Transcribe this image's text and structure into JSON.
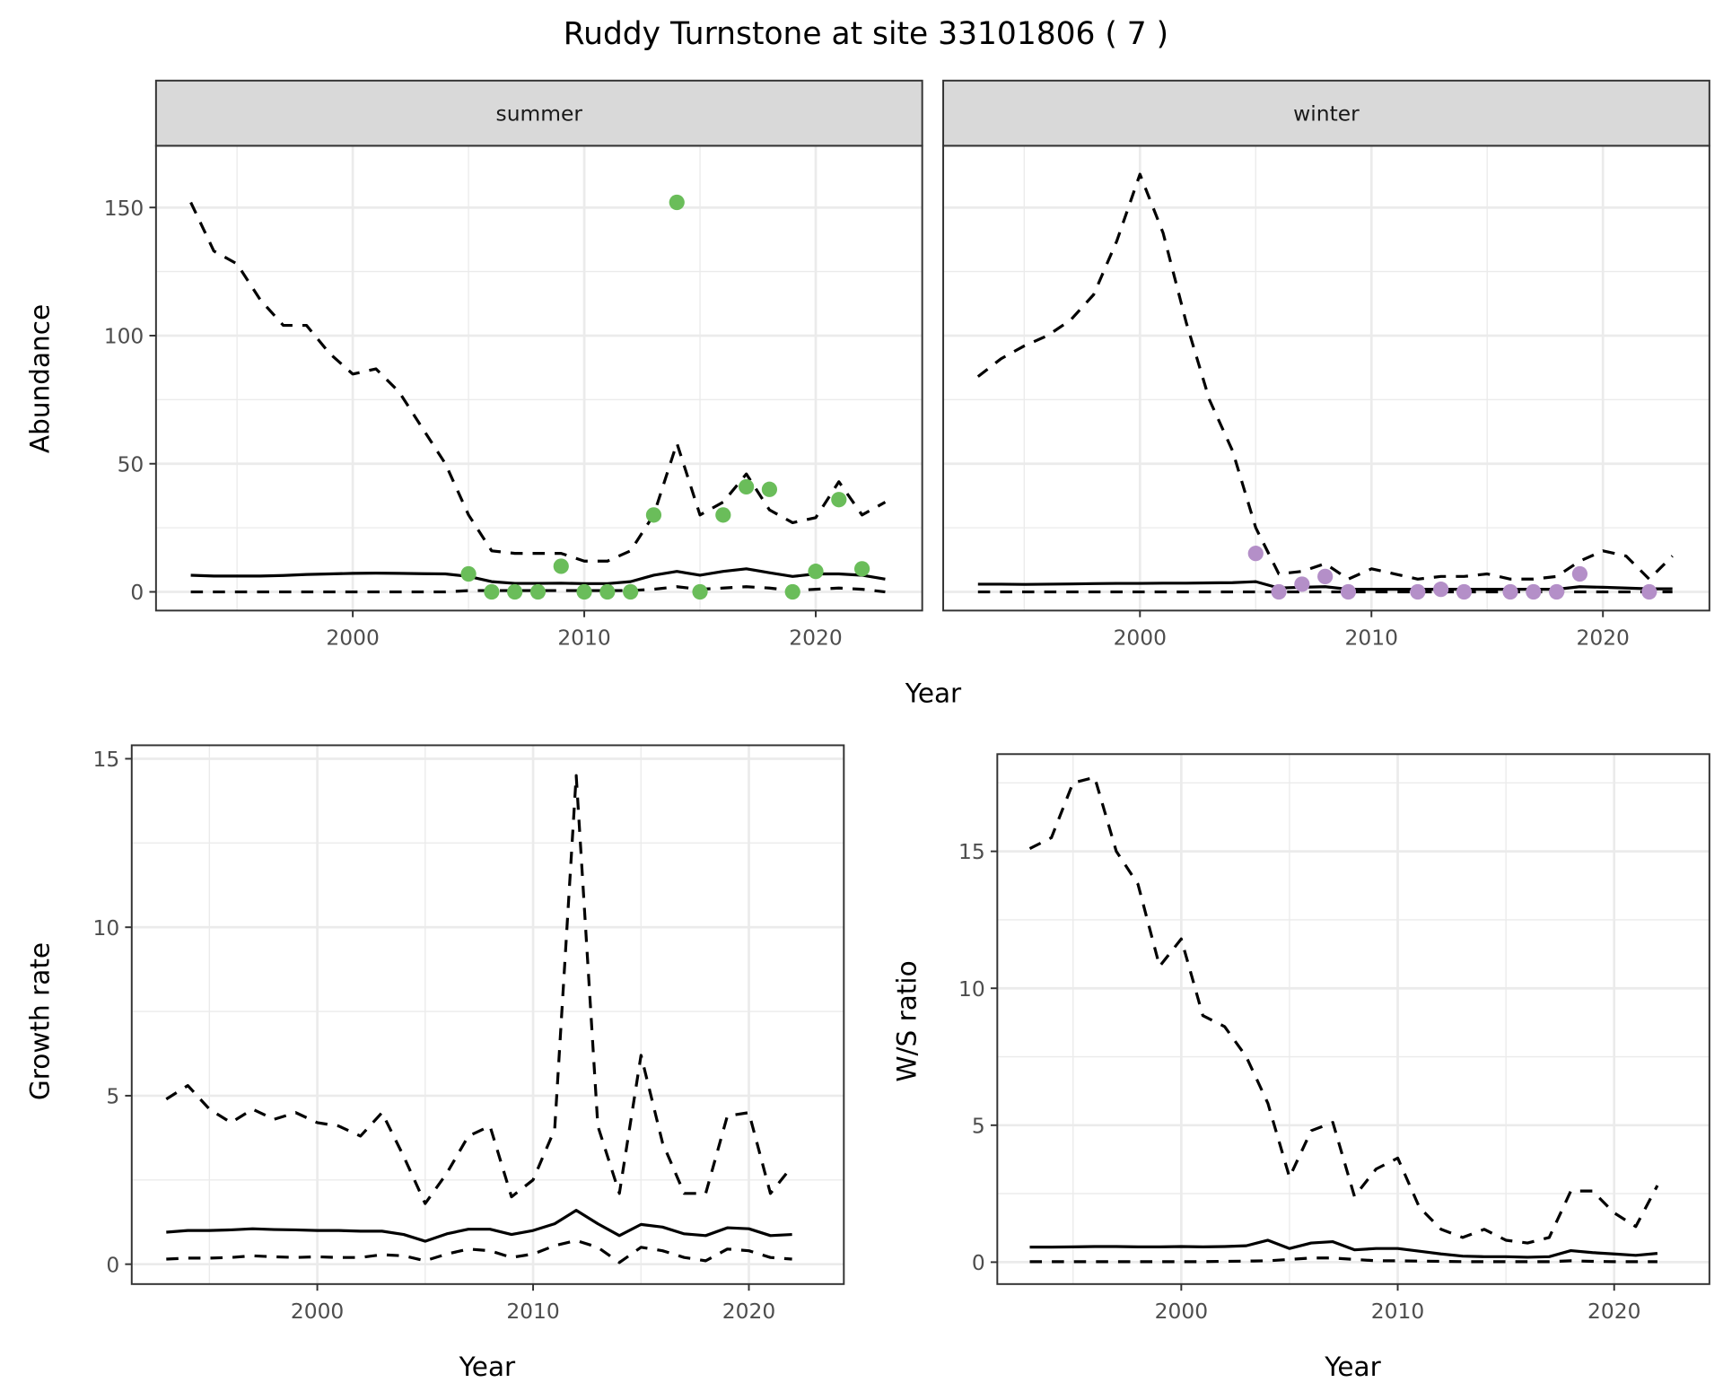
{
  "title": "Ruddy Turnstone at site 33101806 ( 7 )",
  "colors": {
    "summer_points": "#6abd5a",
    "winter_points": "#b48fc8",
    "lines": "#000000",
    "strip_bg": "#d9d9d9",
    "grid": "#ebebeb"
  },
  "chart_data": [
    {
      "type": "line",
      "facet": "summer",
      "xlabel": "Year",
      "ylabel": "Abundance",
      "xlim": [
        1991.5,
        2024.6
      ],
      "ylim": [
        -7.3,
        174.1
      ],
      "xticks": [
        2000,
        2010,
        2020
      ],
      "yticks": [
        0,
        50,
        100,
        150
      ],
      "grid": true,
      "x": [
        1993,
        1994,
        1995,
        1996,
        1997,
        1998,
        1999,
        2000,
        2001,
        2002,
        2003,
        2004,
        2005,
        2006,
        2007,
        2008,
        2009,
        2010,
        2011,
        2012,
        2013,
        2014,
        2015,
        2016,
        2017,
        2018,
        2019,
        2020,
        2021,
        2022,
        2023
      ],
      "lines": [
        {
          "linetype": "dashed",
          "values": [
            152,
            133,
            128,
            114,
            104,
            104,
            93,
            85,
            87,
            78,
            64,
            50,
            30,
            16,
            15,
            15,
            15,
            12,
            12,
            16,
            30,
            58,
            30,
            35,
            46,
            32,
            27,
            29,
            43,
            30,
            35
          ]
        },
        {
          "linetype": "solid",
          "values": [
            6.5,
            6.2,
            6.2,
            6.2,
            6.4,
            6.8,
            7,
            7.2,
            7.3,
            7.2,
            7.1,
            7,
            6,
            4,
            3.3,
            3.3,
            3.4,
            3.2,
            3.2,
            4,
            6.5,
            8,
            6.5,
            8,
            9,
            7.5,
            6,
            7,
            7,
            6.5,
            5
          ]
        },
        {
          "linetype": "dashed",
          "values": [
            0,
            0,
            0,
            0,
            0,
            0,
            0,
            0,
            0,
            0,
            0,
            0,
            0.5,
            0.5,
            0.5,
            0.5,
            0.5,
            0.5,
            0.5,
            0.5,
            1,
            2,
            1,
            1.5,
            2,
            1.5,
            0.5,
            1,
            1.5,
            1,
            0
          ]
        }
      ],
      "points": {
        "x": [
          2005,
          2006,
          2007,
          2008,
          2009,
          2010,
          2011,
          2012,
          2013,
          2014,
          2015,
          2016,
          2017,
          2018,
          2019,
          2020,
          2021,
          2022
        ],
        "y": [
          7,
          0,
          0,
          0,
          10,
          0,
          0,
          0,
          30,
          152,
          0,
          30,
          41,
          40,
          0,
          8,
          36,
          9
        ]
      }
    },
    {
      "type": "line",
      "facet": "winter",
      "xlabel": "Year",
      "ylabel": "Abundance",
      "xlim": [
        1991.5,
        2024.6
      ],
      "ylim": [
        -7.3,
        174.1
      ],
      "xticks": [
        2000,
        2010,
        2020
      ],
      "yticks": [
        0,
        50,
        100,
        150
      ],
      "grid": true,
      "x": [
        1993,
        1994,
        1995,
        1996,
        1997,
        1998,
        1999,
        2000,
        2001,
        2002,
        2003,
        2004,
        2005,
        2006,
        2007,
        2008,
        2009,
        2010,
        2011,
        2012,
        2013,
        2014,
        2015,
        2016,
        2017,
        2018,
        2019,
        2020,
        2021,
        2022,
        2023
      ],
      "lines": [
        {
          "linetype": "dashed",
          "values": [
            84,
            91,
            96,
            100,
            106,
            116,
            137,
            163,
            140,
            105,
            75,
            55,
            25,
            7,
            8,
            11,
            5,
            9,
            7,
            5,
            6,
            6,
            7,
            5,
            5,
            6,
            12,
            16,
            14,
            5,
            14
          ]
        },
        {
          "linetype": "solid",
          "values": [
            3,
            3,
            2.9,
            3,
            3.1,
            3.2,
            3.3,
            3.3,
            3.4,
            3.4,
            3.5,
            3.6,
            4,
            1.5,
            1.8,
            2,
            1,
            1,
            1,
            1,
            1,
            1,
            1,
            1,
            1,
            1,
            2,
            1.8,
            1.5,
            1.2,
            1.2
          ]
        },
        {
          "linetype": "dashed",
          "values": [
            0,
            0,
            0,
            0,
            0,
            0,
            0,
            0,
            0,
            0,
            0,
            0,
            0,
            0,
            0,
            0,
            0,
            0,
            0,
            0,
            0,
            0,
            0,
            0,
            0,
            0,
            0,
            0,
            0,
            0,
            0
          ]
        }
      ],
      "points": {
        "x": [
          2005,
          2006,
          2007,
          2008,
          2009,
          2012,
          2013,
          2014,
          2016,
          2017,
          2018,
          2019,
          2022
        ],
        "y": [
          15,
          0,
          3,
          6,
          0,
          0,
          1,
          0,
          0,
          0,
          0,
          7,
          0
        ]
      }
    },
    {
      "type": "line",
      "xlabel": "Year",
      "ylabel": "Growth rate",
      "xlim": [
        1991.4,
        2024.4
      ],
      "ylim": [
        -0.59,
        15.4
      ],
      "xticks": [
        2000,
        2010,
        2020
      ],
      "yticks": [
        0,
        5,
        10,
        15
      ],
      "grid": true,
      "x": [
        1993,
        1994,
        1995,
        1996,
        1997,
        1998,
        1999,
        2000,
        2001,
        2002,
        2003,
        2004,
        2005,
        2006,
        2007,
        2008,
        2009,
        2010,
        2011,
        2012,
        2013,
        2014,
        2015,
        2016,
        2017,
        2018,
        2019,
        2020,
        2021,
        2022
      ],
      "lines": [
        {
          "linetype": "dashed",
          "values": [
            4.9,
            5.3,
            4.6,
            4.2,
            4.6,
            4.3,
            4.5,
            4.2,
            4.1,
            3.8,
            4.5,
            3.2,
            1.8,
            2.7,
            3.8,
            4.1,
            2.0,
            2.5,
            4.0,
            14.5,
            4.1,
            2.1,
            6.2,
            3.6,
            2.1,
            2.1,
            4.4,
            4.5,
            2.1,
            2.9
          ]
        },
        {
          "linetype": "solid",
          "values": [
            0.95,
            1.0,
            1.0,
            1.02,
            1.05,
            1.03,
            1.02,
            1.0,
            1.0,
            0.98,
            0.98,
            0.88,
            0.68,
            0.9,
            1.04,
            1.04,
            0.88,
            1.0,
            1.2,
            1.6,
            1.2,
            0.85,
            1.18,
            1.1,
            0.9,
            0.85,
            1.08,
            1.05,
            0.85,
            0.88
          ]
        },
        {
          "linetype": "dashed",
          "values": [
            0.15,
            0.18,
            0.18,
            0.2,
            0.25,
            0.22,
            0.2,
            0.22,
            0.2,
            0.2,
            0.28,
            0.25,
            0.1,
            0.3,
            0.45,
            0.4,
            0.2,
            0.3,
            0.55,
            0.7,
            0.5,
            0.05,
            0.5,
            0.4,
            0.2,
            0.1,
            0.45,
            0.4,
            0.2,
            0.15
          ]
        }
      ]
    },
    {
      "type": "line",
      "xlabel": "Year",
      "ylabel": "W/S ratio",
      "xlim": [
        1991.5,
        2024.4
      ],
      "ylim": [
        -0.8,
        18.55
      ],
      "xticks": [
        2000,
        2010,
        2020
      ],
      "yticks": [
        0,
        5,
        10,
        15
      ],
      "grid": true,
      "x": [
        1993,
        1994,
        1995,
        1996,
        1997,
        1998,
        1999,
        2000,
        2001,
        2002,
        2003,
        2004,
        2005,
        2006,
        2007,
        2008,
        2009,
        2010,
        2011,
        2012,
        2013,
        2014,
        2015,
        2016,
        2017,
        2018,
        2019,
        2020,
        2021,
        2022
      ],
      "lines": [
        {
          "linetype": "dashed",
          "values": [
            15.1,
            15.5,
            17.5,
            17.7,
            15,
            13.8,
            10.8,
            11.8,
            9,
            8.6,
            7.5,
            5.8,
            3.1,
            4.8,
            5.1,
            2.4,
            3.4,
            3.8,
            2.0,
            1.2,
            0.9,
            1.2,
            0.8,
            0.7,
            0.9,
            2.6,
            2.6,
            1.8,
            1.3,
            2.8
          ]
        },
        {
          "linetype": "solid",
          "values": [
            0.55,
            0.55,
            0.56,
            0.57,
            0.57,
            0.56,
            0.56,
            0.57,
            0.56,
            0.57,
            0.6,
            0.8,
            0.5,
            0.7,
            0.75,
            0.45,
            0.5,
            0.5,
            0.4,
            0.3,
            0.22,
            0.2,
            0.2,
            0.18,
            0.2,
            0.42,
            0.35,
            0.3,
            0.25,
            0.32
          ]
        },
        {
          "linetype": "dashed",
          "values": [
            0.02,
            0.02,
            0.02,
            0.02,
            0.02,
            0.02,
            0.02,
            0.02,
            0.02,
            0.03,
            0.04,
            0.05,
            0.1,
            0.15,
            0.15,
            0.1,
            0.05,
            0.05,
            0.04,
            0.03,
            0.02,
            0.02,
            0.02,
            0.02,
            0.02,
            0.05,
            0.03,
            0.02,
            0.02,
            0.02
          ]
        }
      ]
    }
  ]
}
